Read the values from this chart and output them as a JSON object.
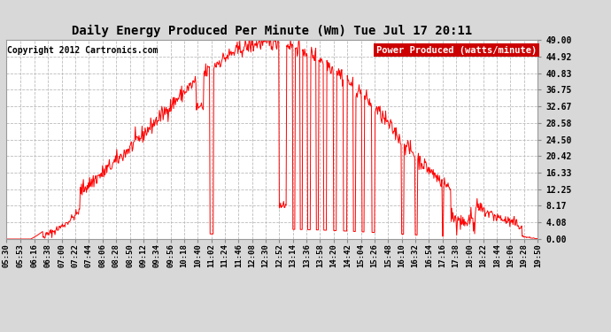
{
  "title": "Daily Energy Produced Per Minute (Wm) Tue Jul 17 20:11",
  "copyright": "Copyright 2012 Cartronics.com",
  "legend_label": "Power Produced (watts/minute)",
  "bg_color": "#d8d8d8",
  "plot_bg_color": "#ffffff",
  "line_color": "#ff0000",
  "legend_bg": "#cc0000",
  "legend_fg": "#ffffff",
  "ytick_values": [
    0.0,
    4.08,
    8.17,
    12.25,
    16.33,
    20.42,
    24.5,
    28.58,
    32.67,
    36.75,
    40.83,
    44.92,
    49.0
  ],
  "ylim": [
    0,
    49
  ],
  "xtick_labels": [
    "05:30",
    "05:53",
    "06:16",
    "06:38",
    "07:00",
    "07:22",
    "07:44",
    "08:06",
    "08:28",
    "08:50",
    "09:12",
    "09:34",
    "09:56",
    "10:18",
    "10:40",
    "11:02",
    "11:24",
    "11:46",
    "12:08",
    "12:30",
    "12:52",
    "13:14",
    "13:36",
    "13:58",
    "14:20",
    "14:42",
    "15:04",
    "15:26",
    "15:48",
    "16:10",
    "16:32",
    "16:54",
    "17:16",
    "17:38",
    "18:00",
    "18:22",
    "18:44",
    "19:06",
    "19:28",
    "19:50"
  ],
  "grid_color": "#bbbbbb",
  "title_fontsize": 10,
  "tick_fontsize": 7,
  "copyright_fontsize": 7,
  "legend_fontsize": 7.5
}
